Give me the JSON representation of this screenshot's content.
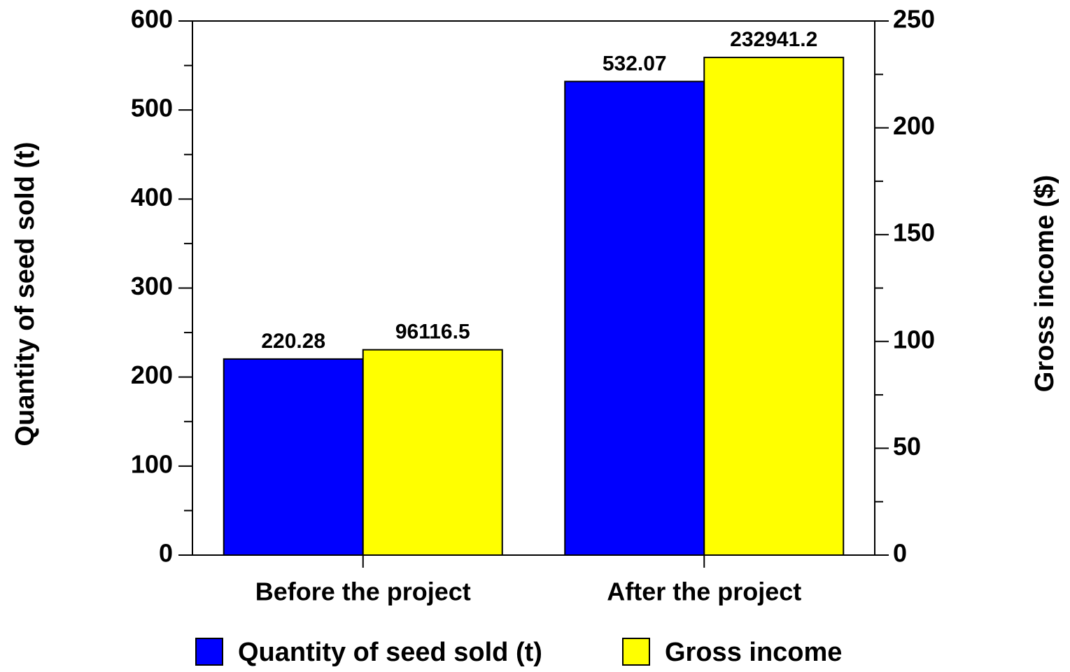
{
  "chart_data": {
    "type": "bar",
    "categories": [
      "Before the project",
      "After the project"
    ],
    "series": [
      {
        "name": "Quantity of seed sold (t)",
        "color": "#0000ff",
        "values": [
          220.28,
          532.07
        ]
      },
      {
        "name": "Gross income",
        "color": "#ffff00",
        "axis": "y2",
        "values": [
          96.1165,
          232.9412
        ],
        "value_labels": [
          "96116.5",
          "232941.2"
        ]
      }
    ],
    "ylabel": "Quantity of seed sold (t)",
    "y2label": "Gross income ($)",
    "ylim": [
      0,
      600
    ],
    "yticks": [
      0,
      100,
      200,
      300,
      400,
      500,
      600
    ],
    "y2lim": [
      0,
      250
    ],
    "y2ticks": [
      0,
      50,
      100,
      150,
      200,
      250
    ],
    "legend": "bottom"
  }
}
